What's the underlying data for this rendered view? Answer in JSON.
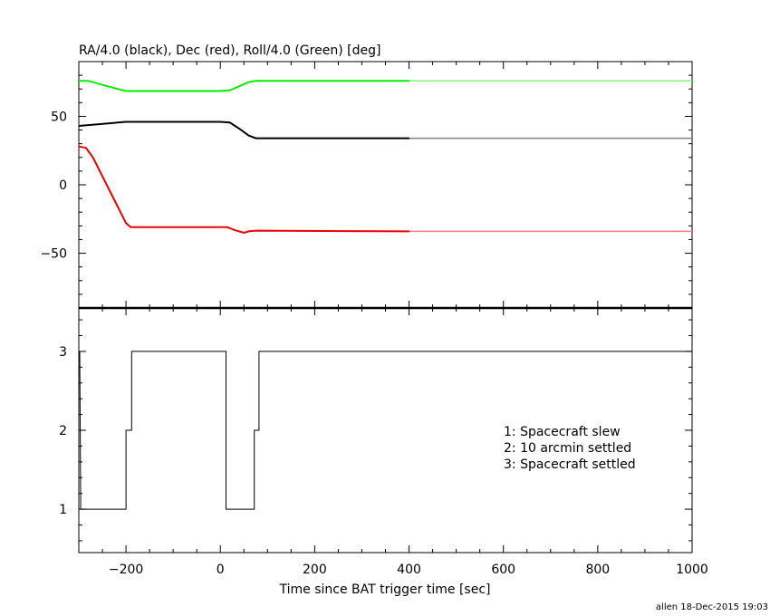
{
  "chart_data": [
    {
      "type": "line",
      "title": "RA/4.0 (black), Dec (red), Roll/4.0 (Green) [deg]",
      "xlim": [
        -300,
        1000
      ],
      "ylim": [
        -90,
        90
      ],
      "y_tick_labels": [
        "50",
        "0",
        "−50"
      ],
      "y_ticks": [
        50,
        0,
        -50
      ],
      "grid": false,
      "series": [
        {
          "color": "#00ee00",
          "solid": [
            [
              -300,
              76
            ],
            [
              -280,
              76
            ],
            [
              -250,
              73
            ],
            [
              -200,
              68.5
            ],
            [
              0,
              68.5
            ],
            [
              20,
              69
            ],
            [
              40,
              72
            ],
            [
              60,
              75
            ],
            [
              75,
              76
            ],
            [
              400,
              76
            ]
          ],
          "dotted": [
            [
              400,
              76
            ],
            [
              1000,
              76
            ]
          ]
        },
        {
          "color": "#000000",
          "solid": [
            [
              -300,
              43
            ],
            [
              -200,
              46
            ],
            [
              0,
              46
            ],
            [
              20,
              45.5
            ],
            [
              40,
              41
            ],
            [
              60,
              36
            ],
            [
              75,
              34
            ],
            [
              400,
              34
            ]
          ],
          "dotted": [
            [
              400,
              34
            ],
            [
              1000,
              34
            ]
          ]
        },
        {
          "color": "#ee0000",
          "solid": [
            [
              -300,
              28
            ],
            [
              -285,
              27
            ],
            [
              -270,
              20
            ],
            [
              -200,
              -28
            ],
            [
              -190,
              -31
            ],
            [
              15,
              -31
            ],
            [
              30,
              -33
            ],
            [
              50,
              -35
            ],
            [
              60,
              -34
            ],
            [
              75,
              -33.5
            ],
            [
              400,
              -34
            ]
          ],
          "dotted": [
            [
              400,
              -34
            ],
            [
              1000,
              -34
            ]
          ]
        }
      ]
    },
    {
      "type": "line",
      "xlabel": "Time since BAT trigger time [sec]",
      "xlim": [
        -300,
        1000
      ],
      "ylim": [
        0.45,
        3.55
      ],
      "x_ticks": [
        -200,
        0,
        200,
        400,
        600,
        800,
        1000
      ],
      "x_tick_labels": [
        "−200",
        "0",
        "200",
        "400",
        "600",
        "800",
        "1000"
      ],
      "y_ticks": [
        1,
        2,
        3
      ],
      "y_tick_labels": [
        "1",
        "2",
        "3"
      ],
      "series": [
        {
          "color": "#000000",
          "step": [
            [
              -298,
              3
            ],
            [
              -296,
              1
            ],
            [
              -200,
              1
            ],
            [
              -200,
              2
            ],
            [
              -188,
              2
            ],
            [
              -188,
              3
            ],
            [
              12,
              3
            ],
            [
              12,
              1
            ],
            [
              72,
              1
            ],
            [
              72,
              2
            ],
            [
              82,
              2
            ],
            [
              82,
              3
            ],
            [
              1000,
              3
            ]
          ]
        }
      ],
      "legend": {
        "position": "lower-right",
        "entries": [
          "1: Spacecraft slew",
          "2: 10 arcmin settled",
          "3: Spacecraft settled"
        ]
      }
    }
  ],
  "footer": "allen 18-Dec-2015 19:03"
}
